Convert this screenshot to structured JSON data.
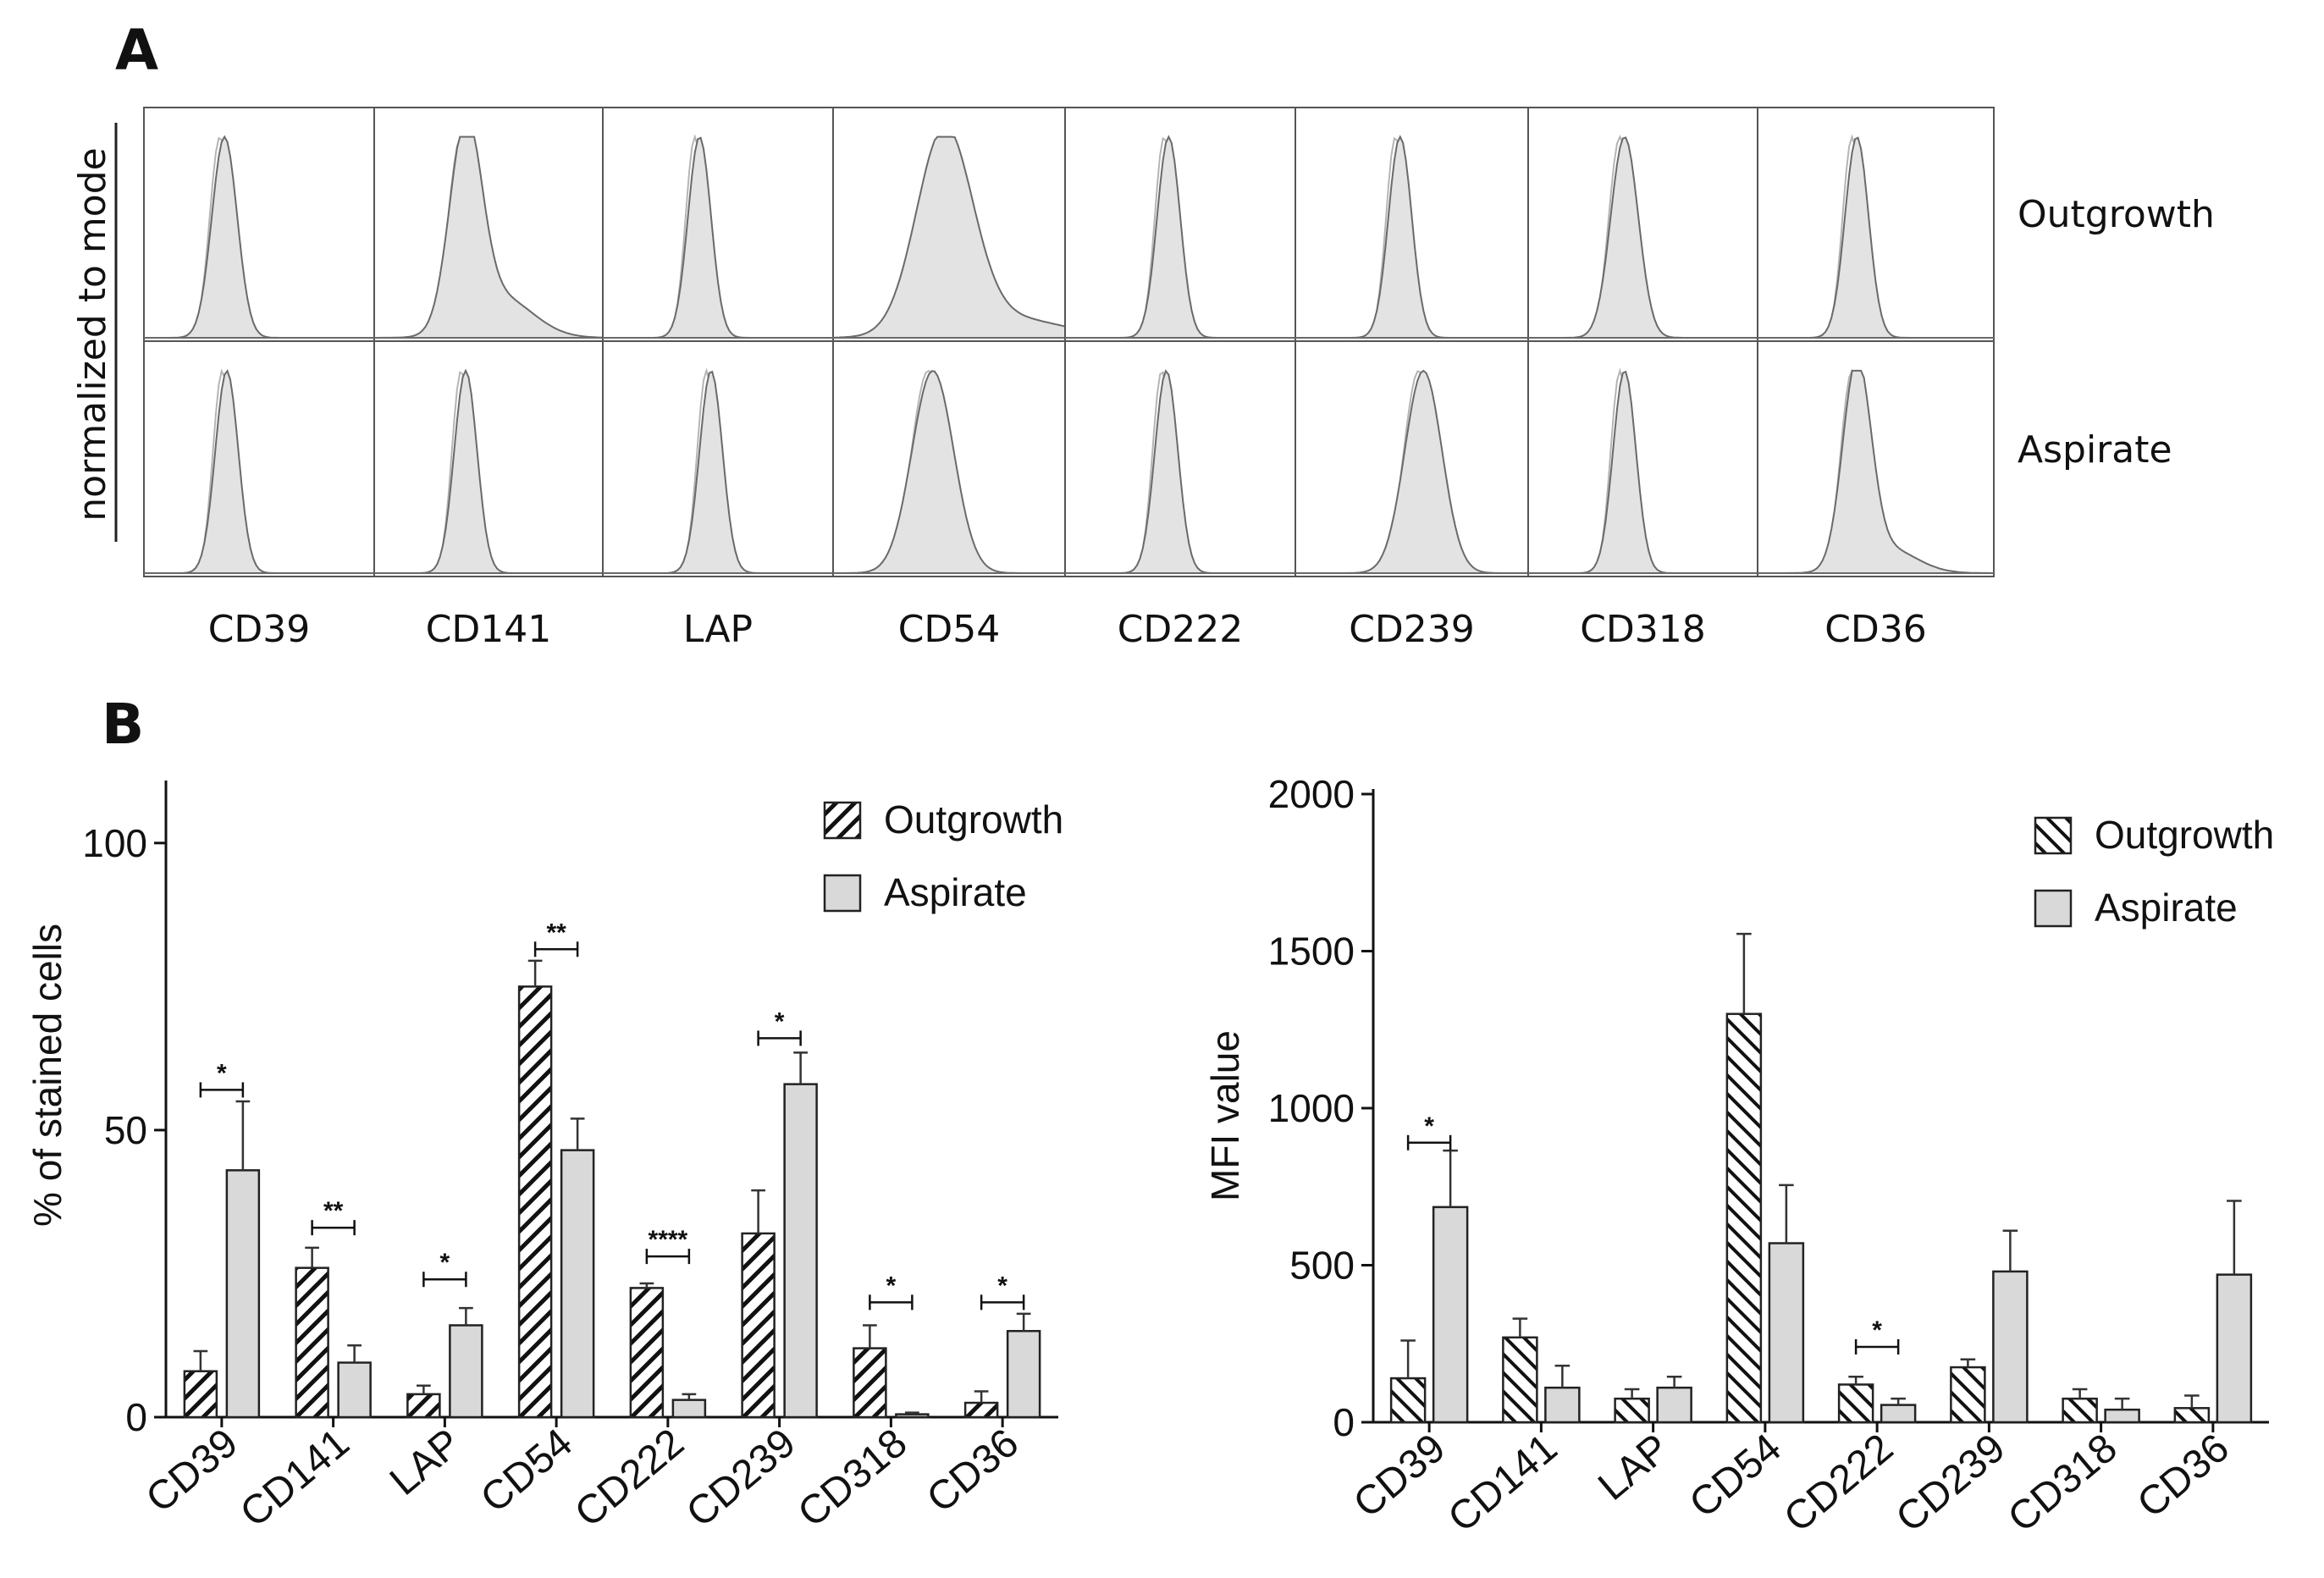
{
  "panels": {
    "a": "A",
    "b": "B"
  },
  "histograms": {
    "y_label": "normalized to mode",
    "rows": [
      "Outgrowth",
      "Aspirate"
    ],
    "markers": [
      "CD39",
      "CD141",
      "LAP",
      "CD54",
      "CD222",
      "CD239",
      "CD318",
      "CD36"
    ],
    "colors": {
      "filled": "#e3e3e3",
      "filled_stroke": "#6a6a6a",
      "control_stroke": "#b5b5b5",
      "frame": "#555555"
    }
  },
  "chart_data": [
    {
      "type": "bar",
      "id": "percent",
      "title": "",
      "xlabel": "",
      "ylabel": "% of stained cells",
      "ylim": [
        0,
        110
      ],
      "yticks": [
        0,
        50,
        100
      ],
      "categories": [
        "CD39",
        "CD141",
        "LAP",
        "CD54",
        "CD222",
        "CD239",
        "CD318",
        "CD36"
      ],
      "series": [
        {
          "name": "Outgrowth",
          "pattern": "hatch-forward",
          "values": [
            8,
            26,
            4,
            75,
            22.5,
            32,
            12,
            2.5
          ],
          "errors": [
            3.5,
            3.5,
            1.5,
            4.5,
            0.8,
            7.5,
            4,
            2
          ]
        },
        {
          "name": "Aspirate",
          "pattern": "solid",
          "color": "#d9d9d9",
          "values": [
            43,
            9.5,
            16,
            46.5,
            3,
            58,
            0.5,
            15
          ],
          "errors": [
            12,
            3,
            3,
            5.5,
            1,
            5.5,
            0.3,
            3
          ]
        }
      ],
      "significance": [
        {
          "category": "CD39",
          "label": "*",
          "level": 57
        },
        {
          "category": "CD141",
          "label": "**",
          "level": 33
        },
        {
          "category": "LAP",
          "label": "*",
          "level": 24
        },
        {
          "category": "CD54",
          "label": "**",
          "level": 81.5
        },
        {
          "category": "CD222",
          "label": "****",
          "level": 28
        },
        {
          "category": "CD239",
          "label": "*",
          "level": 66
        },
        {
          "category": "CD318",
          "label": "*",
          "level": 20
        },
        {
          "category": "CD36",
          "label": "*",
          "level": 20
        }
      ],
      "legend": {
        "placement": "top-right",
        "entries": [
          "Outgrowth",
          "Aspirate"
        ]
      }
    },
    {
      "type": "bar",
      "id": "mfi",
      "title": "",
      "xlabel": "",
      "ylabel": "MFI value",
      "ylim": [
        0,
        2000
      ],
      "yticks": [
        0,
        500,
        1000,
        1500,
        2000
      ],
      "categories": [
        "CD39",
        "CD141",
        "LAP",
        "CD54",
        "CD222",
        "CD239",
        "CD318",
        "CD36"
      ],
      "series": [
        {
          "name": "Outgrowth",
          "pattern": "hatch-backward",
          "values": [
            140,
            270,
            75,
            1300,
            120,
            175,
            75,
            45
          ],
          "errors": [
            120,
            60,
            30,
            255,
            25,
            25,
            30,
            40
          ]
        },
        {
          "name": "Aspirate",
          "pattern": "solid",
          "color": "#d9d9d9",
          "values": [
            685,
            110,
            110,
            570,
            55,
            480,
            40,
            470
          ],
          "errors": [
            180,
            70,
            35,
            185,
            20,
            130,
            35,
            235
          ]
        }
      ],
      "significance": [
        {
          "category": "CD39",
          "label": "*",
          "level": 890
        },
        {
          "category": "CD222",
          "label": "*",
          "level": 240
        }
      ],
      "legend": {
        "placement": "top-right",
        "entries": [
          "Outgrowth",
          "Aspirate"
        ]
      }
    }
  ]
}
